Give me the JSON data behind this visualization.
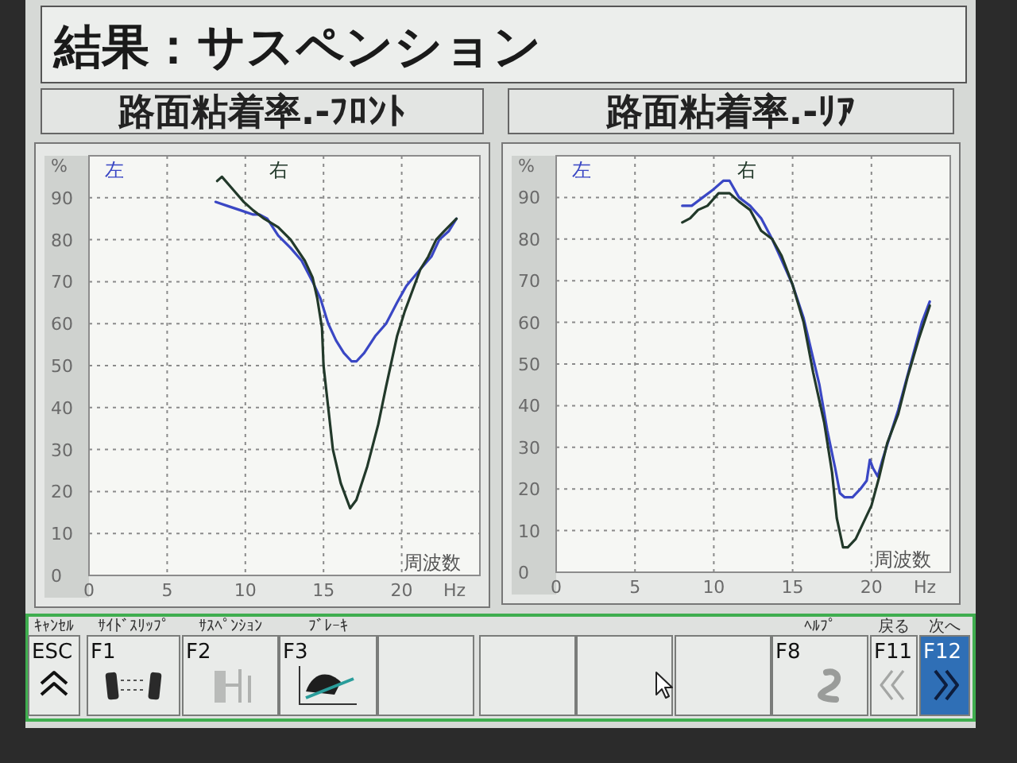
{
  "chart_data": [
    {
      "type": "other",
      "title": "結果：サスペンション"
    },
    {
      "type": "line",
      "title": "路面粘着率.-ﾌﾛﾝﾄ",
      "xlabel": "周波数",
      "ylabel": "%",
      "annotations": [
        "Hz"
      ],
      "xlim": [
        0,
        25
      ],
      "xticks": [
        0,
        5,
        10,
        15,
        20
      ],
      "ylim": [
        0,
        100
      ],
      "yticks": [
        0,
        10,
        20,
        30,
        40,
        50,
        60,
        70,
        80,
        90
      ],
      "grid": true,
      "legend": "top left",
      "line_style": "solid",
      "series": [
        {
          "name": "左",
          "color": "#3a47c4",
          "x": [
            8.1,
            8.9,
            9.7,
            10.5,
            10.9,
            11.4,
            12.1,
            12.9,
            13.6,
            14.3,
            14.8,
            15.3,
            15.8,
            16.3,
            16.8,
            17.1,
            17.6,
            18.3,
            19.0,
            19.7,
            20.3,
            21.2,
            21.9,
            22.4,
            23.0,
            23.5
          ],
          "values": [
            89,
            88,
            87,
            86,
            86,
            85,
            81,
            78,
            75,
            70,
            66,
            60,
            56,
            53,
            51,
            51,
            53,
            57,
            60,
            65,
            69,
            73,
            76,
            80,
            82,
            85
          ]
        },
        {
          "name": "右",
          "color": "#22392a",
          "x": [
            8.2,
            8.5,
            9.2,
            9.9,
            10.5,
            11.2,
            12.1,
            12.9,
            13.8,
            14.3,
            14.6,
            14.9,
            15.0,
            15.3,
            15.6,
            16.1,
            16.7,
            17.1,
            17.8,
            18.5,
            19.0,
            19.7,
            20.2,
            20.7,
            21.2,
            21.7,
            22.2,
            22.7,
            23.5
          ],
          "values": [
            94,
            95,
            92,
            89,
            87,
            85,
            83,
            80,
            75,
            71,
            66,
            59,
            50,
            40,
            30,
            22,
            16,
            18,
            26,
            36,
            45,
            57,
            63,
            68,
            73,
            76,
            80,
            82,
            85
          ]
        }
      ]
    },
    {
      "type": "line",
      "title": "路面粘着率.-ﾘｱ",
      "xlabel": "周波数",
      "ylabel": "%",
      "annotations": [
        "Hz"
      ],
      "xlim": [
        0,
        25
      ],
      "xticks": [
        0,
        5,
        10,
        15,
        20
      ],
      "ylim": [
        0,
        100
      ],
      "yticks": [
        0,
        10,
        20,
        30,
        40,
        50,
        60,
        70,
        80,
        90
      ],
      "grid": true,
      "legend": "top left",
      "line_style": "solid",
      "series": [
        {
          "name": "左",
          "color": "#3a47c4",
          "x": [
            8.0,
            8.6,
            9.3,
            10.0,
            10.6,
            11.0,
            11.6,
            12.3,
            13.0,
            13.7,
            14.3,
            15.0,
            15.7,
            16.2,
            16.7,
            17.2,
            17.7,
            18.0,
            18.3,
            18.8,
            19.3,
            19.7,
            19.9,
            20.1,
            20.4,
            20.7,
            21.2,
            21.7,
            22.2,
            22.7,
            23.2,
            23.7
          ],
          "values": [
            88,
            88,
            90,
            92,
            94,
            94,
            90,
            88,
            85,
            80,
            75,
            69,
            61,
            53,
            45,
            34,
            25,
            19,
            18,
            18,
            20,
            22,
            27,
            25,
            23,
            27,
            33,
            39,
            46,
            53,
            60,
            65
          ]
        },
        {
          "name": "右",
          "color": "#22392a",
          "x": [
            8.0,
            8.5,
            9.0,
            9.6,
            10.3,
            11.0,
            11.6,
            12.3,
            13.0,
            13.7,
            14.3,
            15.0,
            15.7,
            16.3,
            17.0,
            17.5,
            17.8,
            18.2,
            18.5,
            19.0,
            19.5,
            20.0,
            20.5,
            21.0,
            21.7,
            22.3,
            23.0,
            23.7
          ],
          "values": [
            84,
            85,
            87,
            88,
            91,
            91,
            89,
            87,
            82,
            80,
            76,
            69,
            60,
            48,
            36,
            24,
            13,
            6,
            6,
            8,
            12,
            16,
            23,
            31,
            38,
            47,
            56,
            64
          ]
        }
      ]
    },
    {
      "type": "other",
      "annotations": [
        "ｷｬﾝｾﾙ",
        "ｻｲﾄﾞｽﾘｯﾌﾟ",
        "ｻｽﾍﾟﾝｼｮﾝ",
        "ﾌﾞﾚｰｷ",
        "ﾍﾙﾌﾟ",
        "戻る",
        "次へ",
        "ESC",
        "F1",
        "F2",
        "F3",
        "F8",
        "F11",
        "F12"
      ]
    }
  ]
}
